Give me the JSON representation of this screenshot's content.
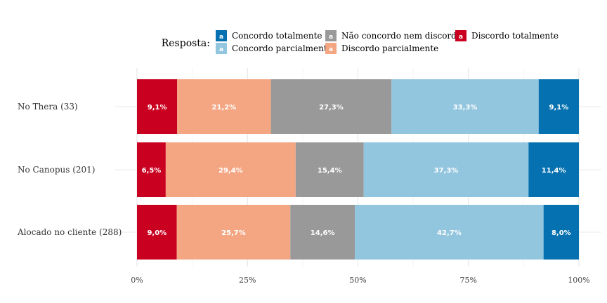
{
  "chart_data": {
    "type": "bar",
    "orientation": "horizontal",
    "stacked": true,
    "legend_title": "Resposta:",
    "legend_placement": "top",
    "grid": true,
    "xlim": [
      0,
      100
    ],
    "x_ticks": [
      "0%",
      "25%",
      "50%",
      "75%",
      "100%"
    ],
    "x_tick_values": [
      0,
      25,
      50,
      75,
      100
    ],
    "categories": [
      "No Thera (33)",
      "No Canopus (201)",
      "Alocado no cliente (288)"
    ],
    "series": [
      {
        "name": "Discordo totalmente",
        "color": "#ca0020",
        "values": [
          9.1,
          6.5,
          9.0
        ],
        "labels": [
          "9,1%",
          "6,5%",
          "9,0%"
        ]
      },
      {
        "name": "Discordo parcialmente",
        "color": "#f4a582",
        "values": [
          21.2,
          29.4,
          25.7
        ],
        "labels": [
          "21,2%",
          "29,4%",
          "25,7%"
        ]
      },
      {
        "name": "Não concordo nem discordo",
        "color": "#999999",
        "values": [
          27.3,
          15.4,
          14.6
        ],
        "labels": [
          "27,3%",
          "15,4%",
          "14,6%"
        ]
      },
      {
        "name": "Concordo parcialmente",
        "color": "#92c5de",
        "values": [
          33.3,
          37.3,
          42.7
        ],
        "labels": [
          "33,3%",
          "37,3%",
          "42,7%"
        ]
      },
      {
        "name": "Concordo totalmente",
        "color": "#0571b0",
        "values": [
          9.1,
          11.4,
          8.0
        ],
        "labels": [
          "9,1%",
          "11,4%",
          "8,0%"
        ]
      }
    ],
    "legend_order": [
      "Concordo totalmente",
      "Concordo parcialmente",
      "Não concordo nem discordo",
      "Discordo parcialmente",
      "Discordo totalmente"
    ],
    "legend_key_letter": "a"
  }
}
